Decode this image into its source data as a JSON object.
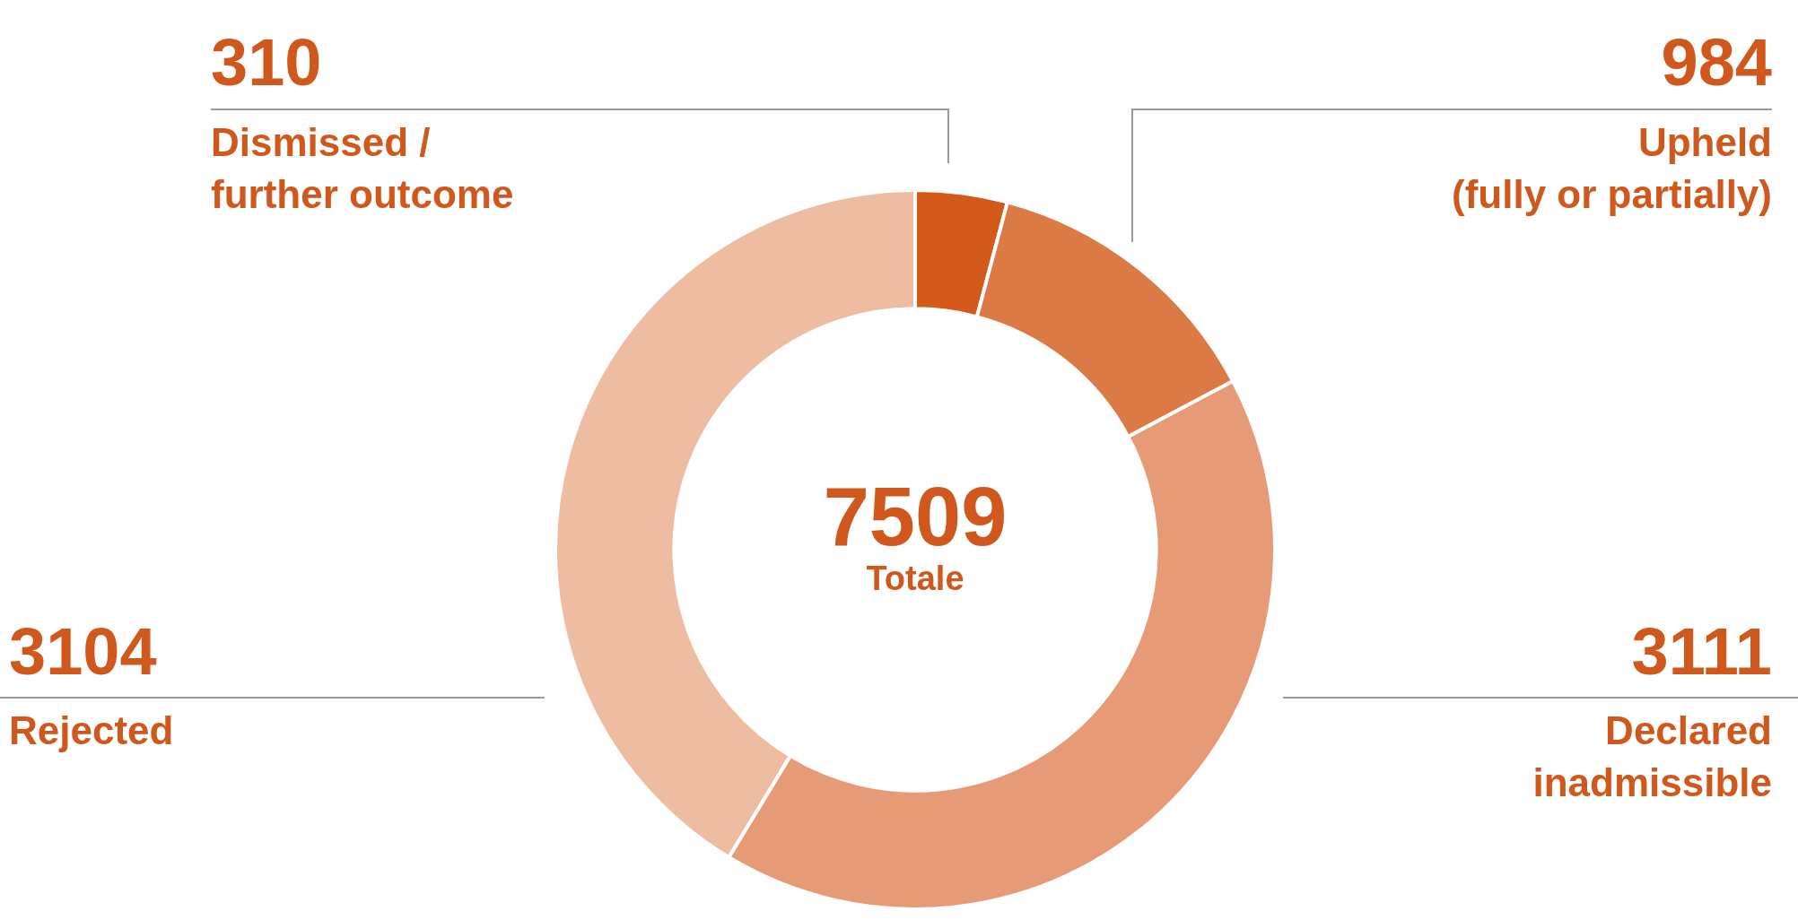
{
  "chart_data": {
    "type": "donut",
    "categories": [
      "Dismissed / further outcome",
      "Upheld (fully or partially)",
      "Declared inadmissible",
      "Rejected"
    ],
    "values": [
      310,
      984,
      3111,
      3104
    ],
    "colors": [
      "#d35a1a",
      "#db7a45",
      "#e69b76",
      "#edbca1"
    ],
    "data_labels": true,
    "legend": false,
    "annotations": [
      "7509",
      "Totale"
    ]
  }
}
